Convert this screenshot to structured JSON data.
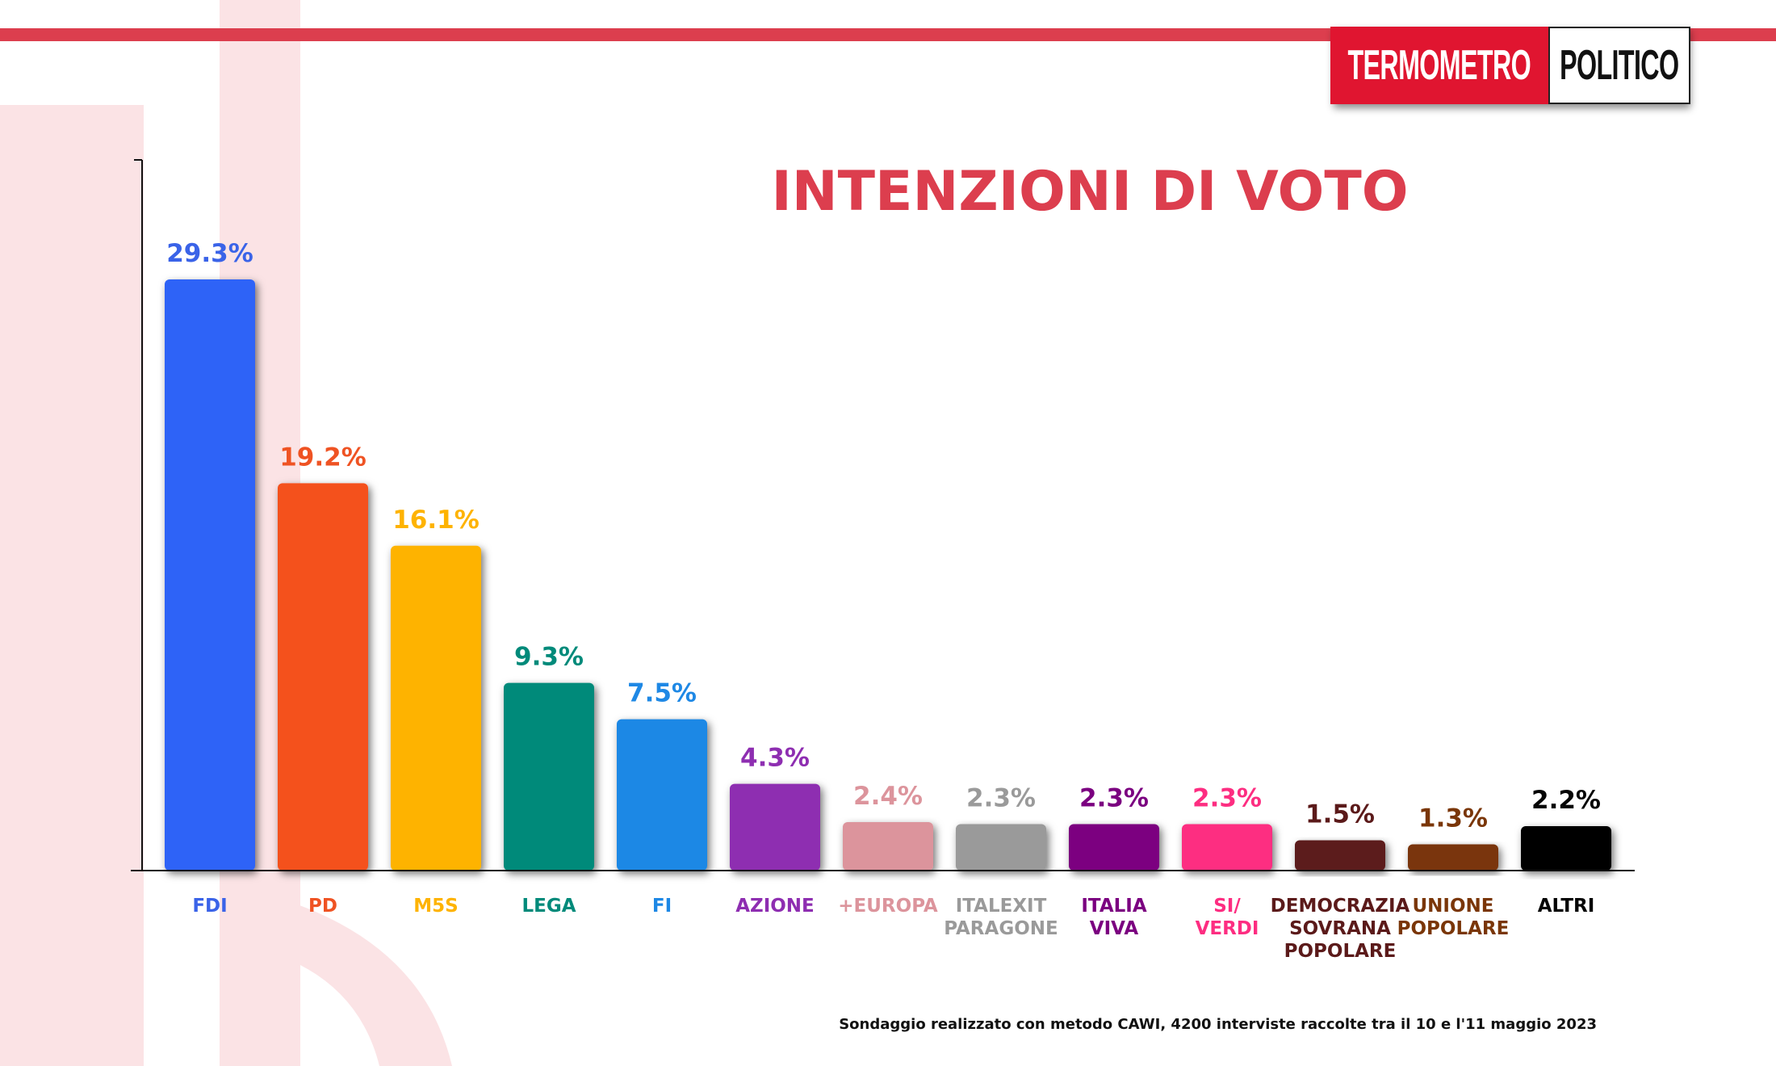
{
  "brand": {
    "left": "TERMOMETRO",
    "right": "POLITICO"
  },
  "footnote": "Sondaggio realizzato con metodo CAWI, 4200 interviste raccolte tra il 10 e l'11 maggio 2023",
  "colors": {
    "accent": "#dc3e4e",
    "watermark": "#fbe3e5",
    "axis": "#111111",
    "logo_red": "#e01530"
  },
  "chart_data": {
    "type": "bar",
    "title": "INTENZIONI DI VOTO",
    "ylim": [
      0,
      34
    ],
    "grid": false,
    "categories": [
      [
        "FDI"
      ],
      [
        "PD"
      ],
      [
        "M5S"
      ],
      [
        "LEGA"
      ],
      [
        "FI"
      ],
      [
        "AZIONE"
      ],
      [
        "+EUROPA"
      ],
      [
        "ITALEXIT",
        "PARAGONE"
      ],
      [
        "ITALIA",
        "VIVA"
      ],
      [
        "SI/",
        "VERDI"
      ],
      [
        "DEMOCRAZIA",
        "SOVRANA",
        "POPOLARE"
      ],
      [
        "UNIONE",
        "POPOLARE"
      ],
      [
        "ALTRI"
      ]
    ],
    "values": [
      29.3,
      19.2,
      16.1,
      9.3,
      7.5,
      4.3,
      2.4,
      2.3,
      2.3,
      2.3,
      1.5,
      1.3,
      2.2
    ],
    "value_labels": [
      "29.3%",
      "19.2%",
      "16.1%",
      "9.3%",
      "7.5%",
      "4.3%",
      "2.4%",
      "2.3%",
      "2.3%",
      "2.3%",
      "1.5%",
      "1.3%",
      "2.2%"
    ],
    "bar_colors": [
      "#2f63f7",
      "#f4511e",
      "#feb300",
      "#008a7a",
      "#1e88e5",
      "#8e2eb1",
      "#dc949c",
      "#9a9a9a",
      "#7b0080",
      "#fd2d81",
      "#5b1a1a",
      "#7a3608",
      "#050505"
    ],
    "label_colors": [
      "#3a63e8",
      "#ef5323",
      "#feb300",
      "#008a7a",
      "#1e88e5",
      "#8e2eb1",
      "#dc949c",
      "#9a9a9a",
      "#7b0080",
      "#fd2d81",
      "#5b1a1a",
      "#7a3608",
      "#050505"
    ]
  }
}
